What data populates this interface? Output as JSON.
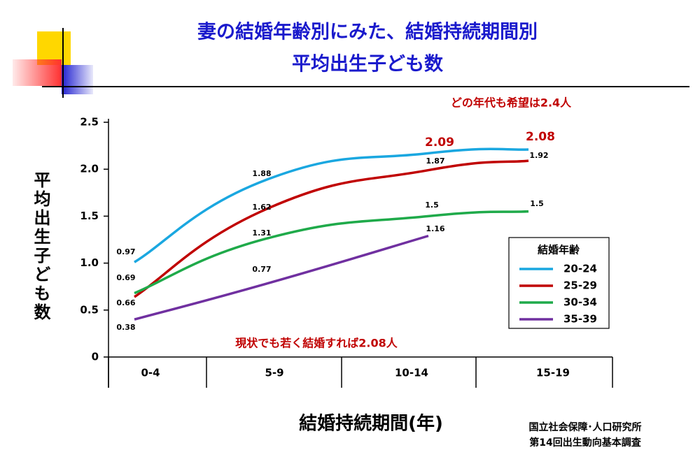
{
  "chart_data": {
    "type": "line",
    "title": [
      "妻の結婚年齢別にみた、結婚持続期間別",
      "平均出生子ども数"
    ],
    "x_label": "結婚持続期間(年)",
    "y_label": "平均出生子ども数",
    "legend_title": "結婚年齢",
    "categories": [
      "0-4",
      "5-9",
      "10-14",
      "15-19"
    ],
    "series": [
      {
        "name": "20-24",
        "color": "#1aa7e0",
        "values": [
          1.01,
          1.9,
          2.17,
          2.21
        ]
      },
      {
        "name": "25-29",
        "color": "#c00000",
        "values": [
          0.64,
          1.59,
          1.99,
          2.09
        ]
      },
      {
        "name": "30-34",
        "color": "#1faa4a",
        "values": [
          0.68,
          1.27,
          1.5,
          1.55
        ]
      },
      {
        "name": "35-39",
        "color": "#7030a0",
        "values": [
          0.4,
          0.79,
          1.29,
          null
        ]
      }
    ],
    "ylim": [
      0,
      2.5
    ],
    "yticks": [
      0,
      0.5,
      {
        "value": 1,
        "label": "1.0"
      },
      1.5,
      {
        "value": 2,
        "label": "2.0"
      },
      2.5
    ],
    "annotations": [
      "どの年代も希望は2.4人",
      "2.09",
      "2.08",
      "現状でも若く結婚すれば2.08人"
    ],
    "point_labels": [
      "0.97",
      "1.88",
      "1.62",
      "1.31",
      "0.77",
      "0.69",
      "0.66",
      "0.38",
      "1.87",
      "1.5",
      "1.16",
      "1.92",
      "1.5"
    ],
    "source": [
      "国立社会保障･人口研究所",
      "第14回出生動向基本調査"
    ]
  }
}
